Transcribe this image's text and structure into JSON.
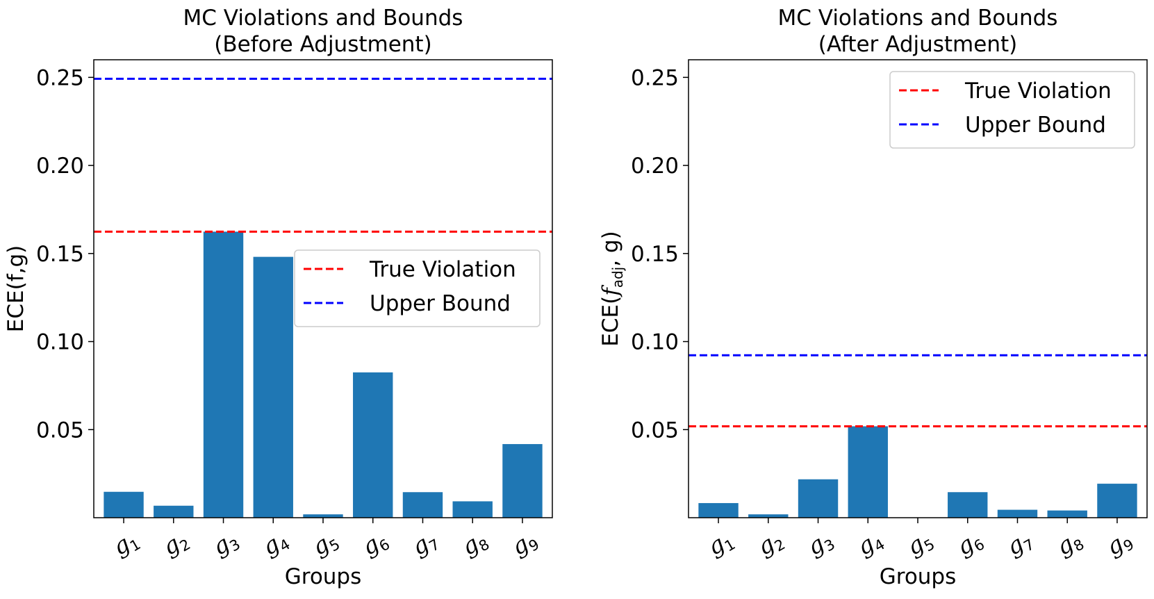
{
  "chart_data": [
    {
      "type": "bar",
      "title_line1": "MC Violations and Bounds",
      "title_line2": "(Before Adjustment)",
      "xlabel": "Groups",
      "ylabel": "ECE(f,g)",
      "ylabel_italic_part": "",
      "ylabel_sub": "",
      "ylabel_tail": "",
      "ylim": [
        0.0,
        0.26
      ],
      "yticks": [
        0.05,
        0.1,
        0.15,
        0.2,
        0.25
      ],
      "ytick_labels": [
        "0.05",
        "0.10",
        "0.15",
        "0.20",
        "0.25"
      ],
      "categories": [
        "g1",
        "g2",
        "g3",
        "g4",
        "g5",
        "g6",
        "g7",
        "g8",
        "g9"
      ],
      "category_letter": "g",
      "category_subs": [
        "1",
        "2",
        "3",
        "4",
        "5",
        "6",
        "7",
        "8",
        "9"
      ],
      "values": [
        0.0147,
        0.0068,
        0.1624,
        0.1481,
        0.0019,
        0.0825,
        0.0145,
        0.0093,
        0.0418
      ],
      "bar_color": "#1f77b4",
      "hlines": [
        {
          "name": "True Violation",
          "value": 0.1624,
          "color": "#ff0000"
        },
        {
          "name": "Upper Bound",
          "value": 0.2492,
          "color": "#0000ff"
        }
      ],
      "legend_placement": "center-right",
      "legend_entries": [
        "True Violation",
        "Upper Bound"
      ]
    },
    {
      "type": "bar",
      "title_line1": "MC Violations and Bounds",
      "title_line2": "(After Adjustment)",
      "xlabel": "Groups",
      "ylabel": "ECE(",
      "ylabel_italic_part": "f",
      "ylabel_sub": "adj",
      "ylabel_tail": ", g)",
      "ylim": [
        0.0,
        0.26
      ],
      "yticks": [
        0.05,
        0.1,
        0.15,
        0.2,
        0.25
      ],
      "ytick_labels": [
        "0.05",
        "0.10",
        "0.15",
        "0.20",
        "0.25"
      ],
      "categories": [
        "g1",
        "g2",
        "g3",
        "g4",
        "g5",
        "g6",
        "g7",
        "g8",
        "g9"
      ],
      "category_letter": "g",
      "category_subs": [
        "1",
        "2",
        "3",
        "4",
        "5",
        "6",
        "7",
        "8",
        "9"
      ],
      "values": [
        0.0083,
        0.0019,
        0.0218,
        0.0519,
        0.0,
        0.0145,
        0.0045,
        0.0041,
        0.0193
      ],
      "bar_color": "#1f77b4",
      "hlines": [
        {
          "name": "True Violation",
          "value": 0.0519,
          "color": "#ff0000"
        },
        {
          "name": "Upper Bound",
          "value": 0.0922,
          "color": "#0000ff"
        }
      ],
      "legend_placement": "top-right",
      "legend_entries": [
        "True Violation",
        "Upper Bound"
      ]
    }
  ]
}
